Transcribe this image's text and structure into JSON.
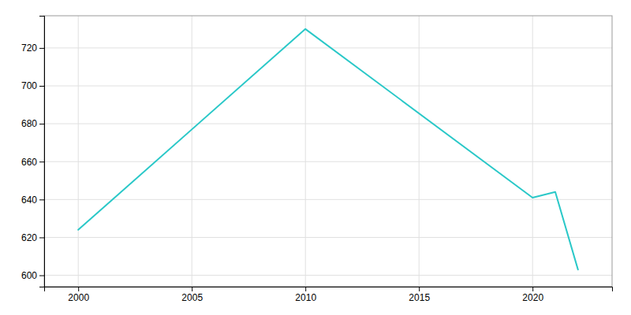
{
  "chart_data": {
    "type": "line",
    "x": [
      2000,
      2010,
      2020,
      2021,
      2022
    ],
    "values": [
      624,
      730,
      641,
      644,
      603
    ],
    "color": "#2AC8C8",
    "xlim": [
      1998.5,
      2023.5
    ],
    "ylim": [
      594,
      737
    ],
    "xticks": [
      2000,
      2005,
      2010,
      2015,
      2020
    ],
    "yticks": [
      600,
      620,
      640,
      660,
      680,
      700,
      720
    ],
    "grid": true
  }
}
